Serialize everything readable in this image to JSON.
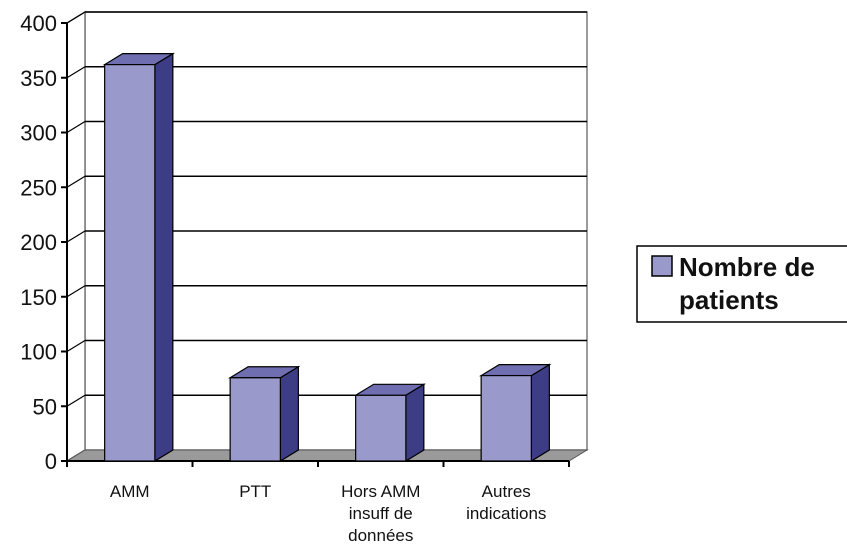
{
  "chart_data": {
    "type": "bar",
    "style": "3d-column",
    "categories": [
      [
        "AMM"
      ],
      [
        "PTT"
      ],
      [
        "Hors AMM",
        "insuff de",
        "données"
      ],
      [
        "Autres",
        "indications"
      ]
    ],
    "series": [
      {
        "name": "Nombre de patients",
        "values": [
          362,
          76,
          60,
          78
        ]
      }
    ],
    "legend": {
      "position": "right",
      "lines": [
        "Nombre de",
        "patients"
      ]
    },
    "yticks": [
      "0",
      "50",
      "100",
      "150",
      "200",
      "250",
      "300",
      "350",
      "400"
    ],
    "ylim": [
      0,
      400
    ],
    "grid": true,
    "colors": {
      "bar_front": "#9999cc",
      "bar_side": "#3d3d86",
      "bar_top": "#6e6eb0",
      "floor": "#9a9a9a",
      "grid": "#000000"
    }
  }
}
